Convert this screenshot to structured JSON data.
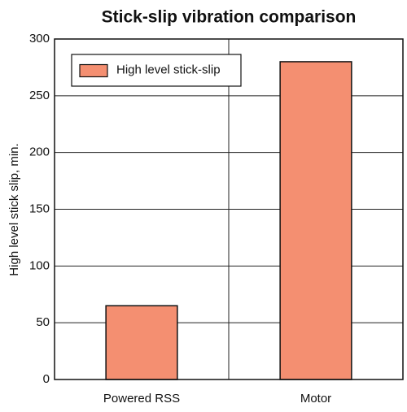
{
  "chart_data": {
    "type": "bar",
    "title": "Stick-slip vibration comparison",
    "y_label": "High level stick slip, min.",
    "categories": [
      "Powered RSS",
      "Motor"
    ],
    "series": [
      {
        "name": "High level stick-slip",
        "color": "#f48f71",
        "values": [
          65,
          280
        ]
      }
    ],
    "ylim": [
      0,
      300
    ],
    "yticks": [
      0,
      50,
      100,
      150,
      200,
      250,
      300
    ],
    "grid": true,
    "legend": "upper left"
  }
}
